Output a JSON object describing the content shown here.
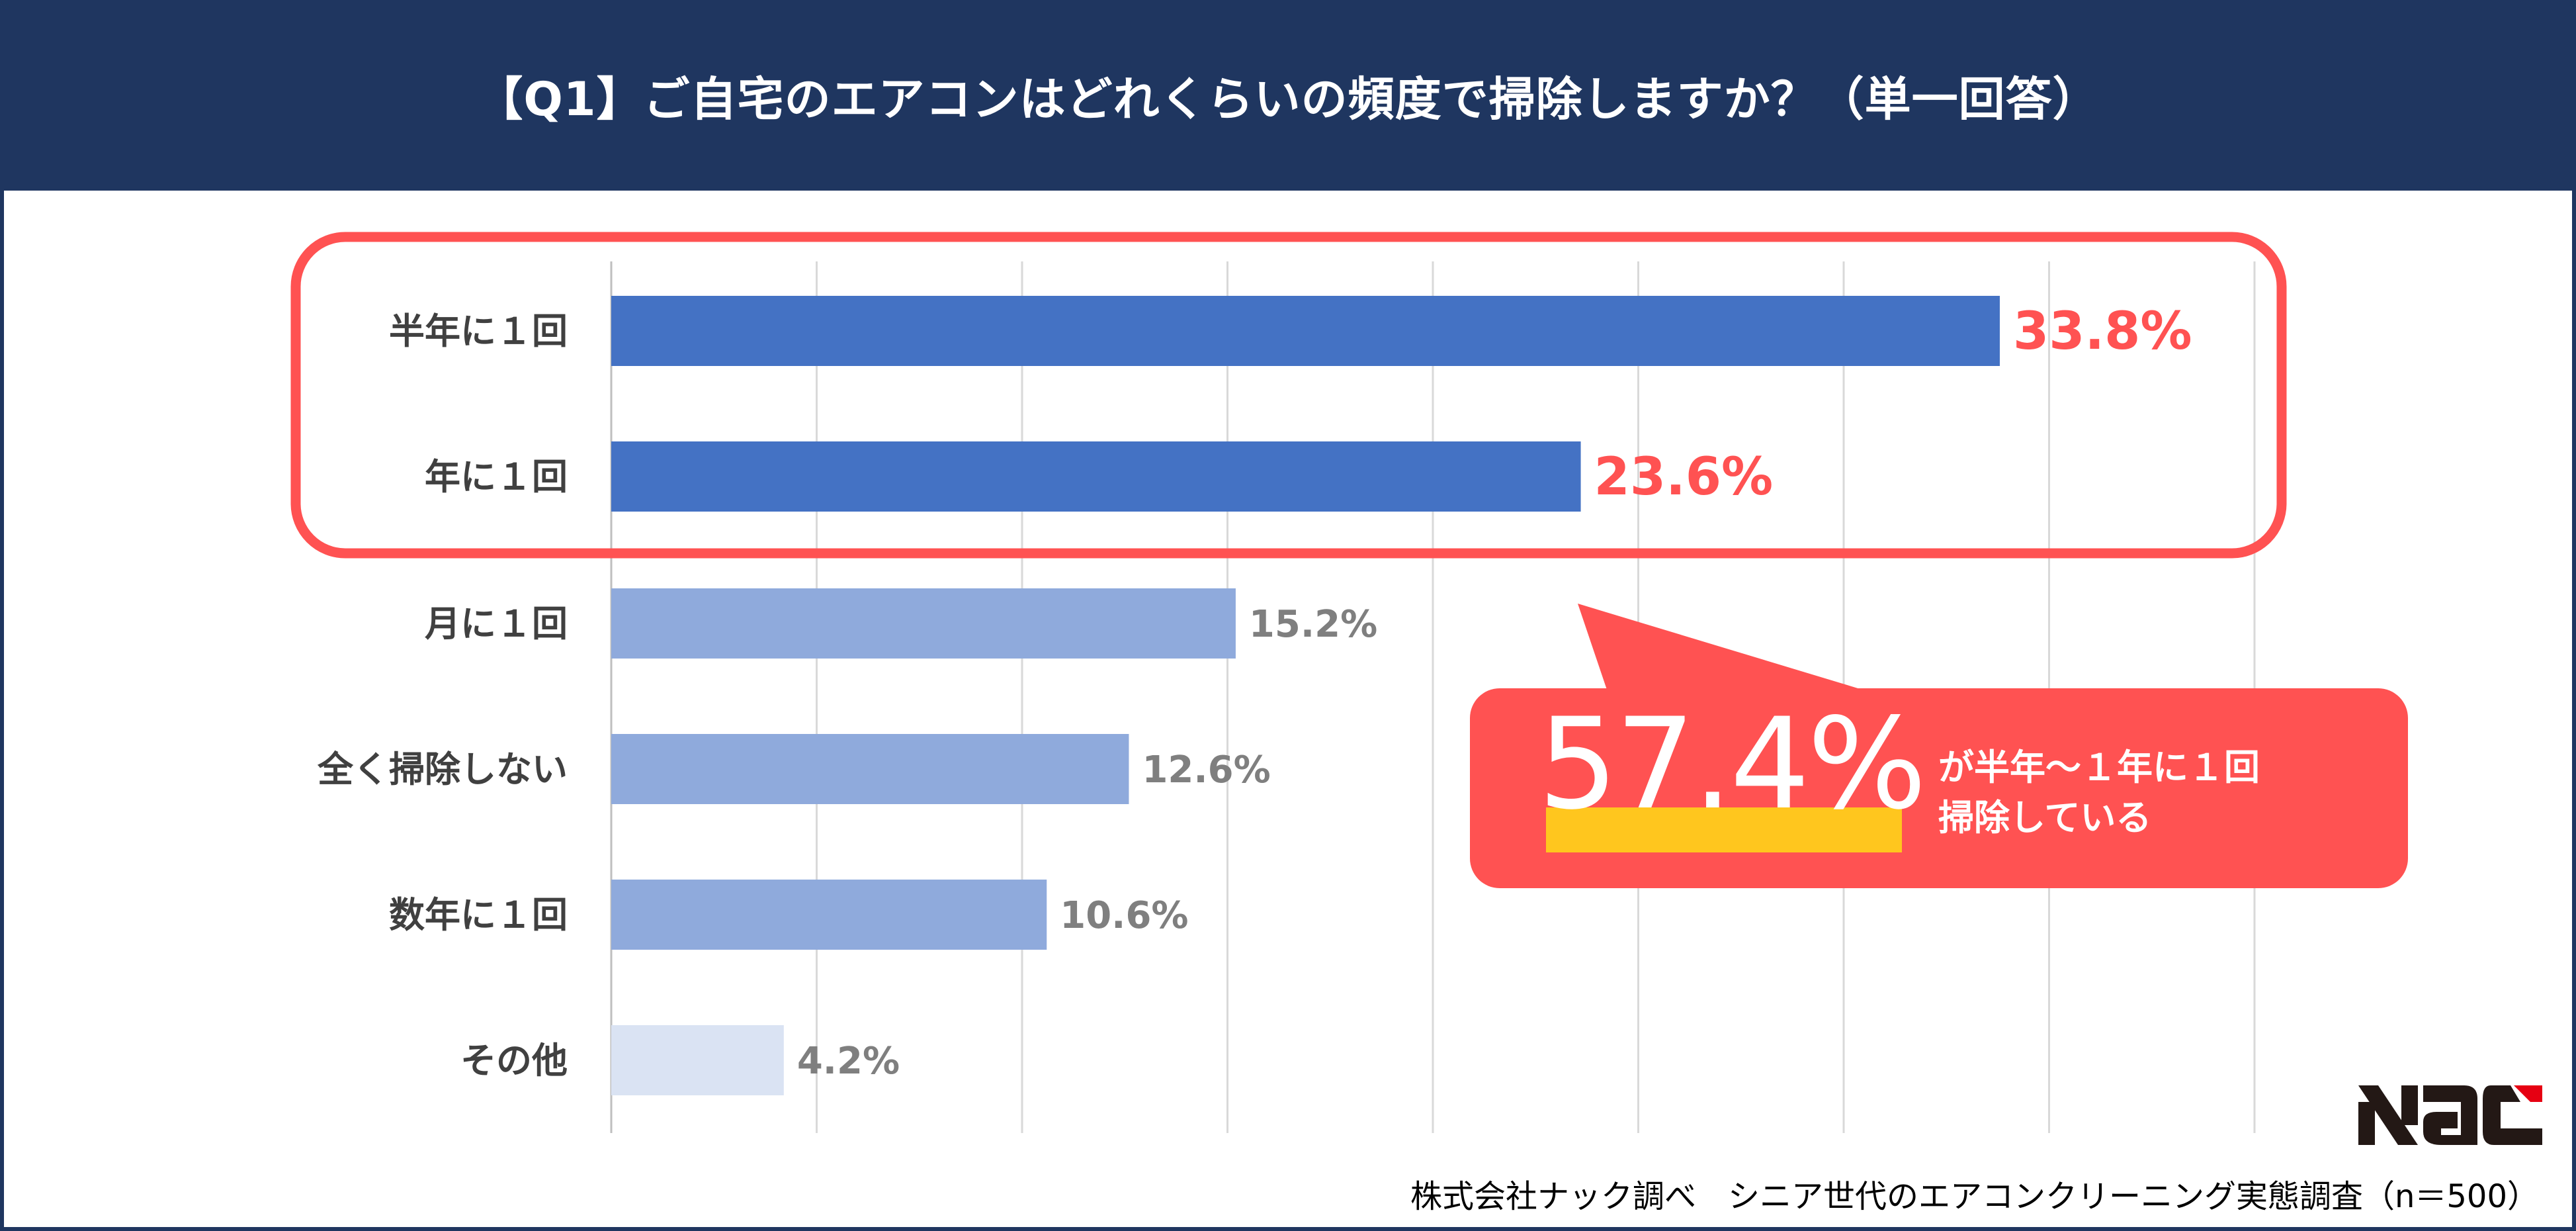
{
  "header": {
    "title": "【Q1】ご自宅のエアコンはどれくらいの頻度で掃除しますか？（単一回答）"
  },
  "chart_data": {
    "type": "bar",
    "orientation": "horizontal",
    "categories": [
      "半年に１回",
      "年に１回",
      "月に１回",
      "全く掃除しない",
      "数年に１回",
      "その他"
    ],
    "values": [
      33.8,
      23.6,
      15.2,
      12.6,
      10.6,
      4.2
    ],
    "value_labels": [
      "33.8%",
      "23.6%",
      "15.2%",
      "12.6%",
      "10.6%",
      "4.2%"
    ],
    "unit": "%",
    "xlim": [
      0,
      40
    ],
    "grid": true,
    "bar_colors": [
      "#4472c4",
      "#4472c4",
      "#8faadc",
      "#8faadc",
      "#8faadc",
      "#dae3f3"
    ],
    "highlight_color": "#ff5252",
    "label_color": "#7f7f7f"
  },
  "callout": {
    "value": "57.4%",
    "line1": "が半年～１年に１回",
    "line2": "掃除している",
    "color": "#ff5252",
    "underline_color": "#ffc61e"
  },
  "footer": {
    "source": "株式会社ナック調べ　シニア世代のエアコンクリーニング実態調査（n＝500）"
  },
  "logo": {
    "text": "NAC",
    "colors": [
      "#231815",
      "#e60012"
    ]
  }
}
